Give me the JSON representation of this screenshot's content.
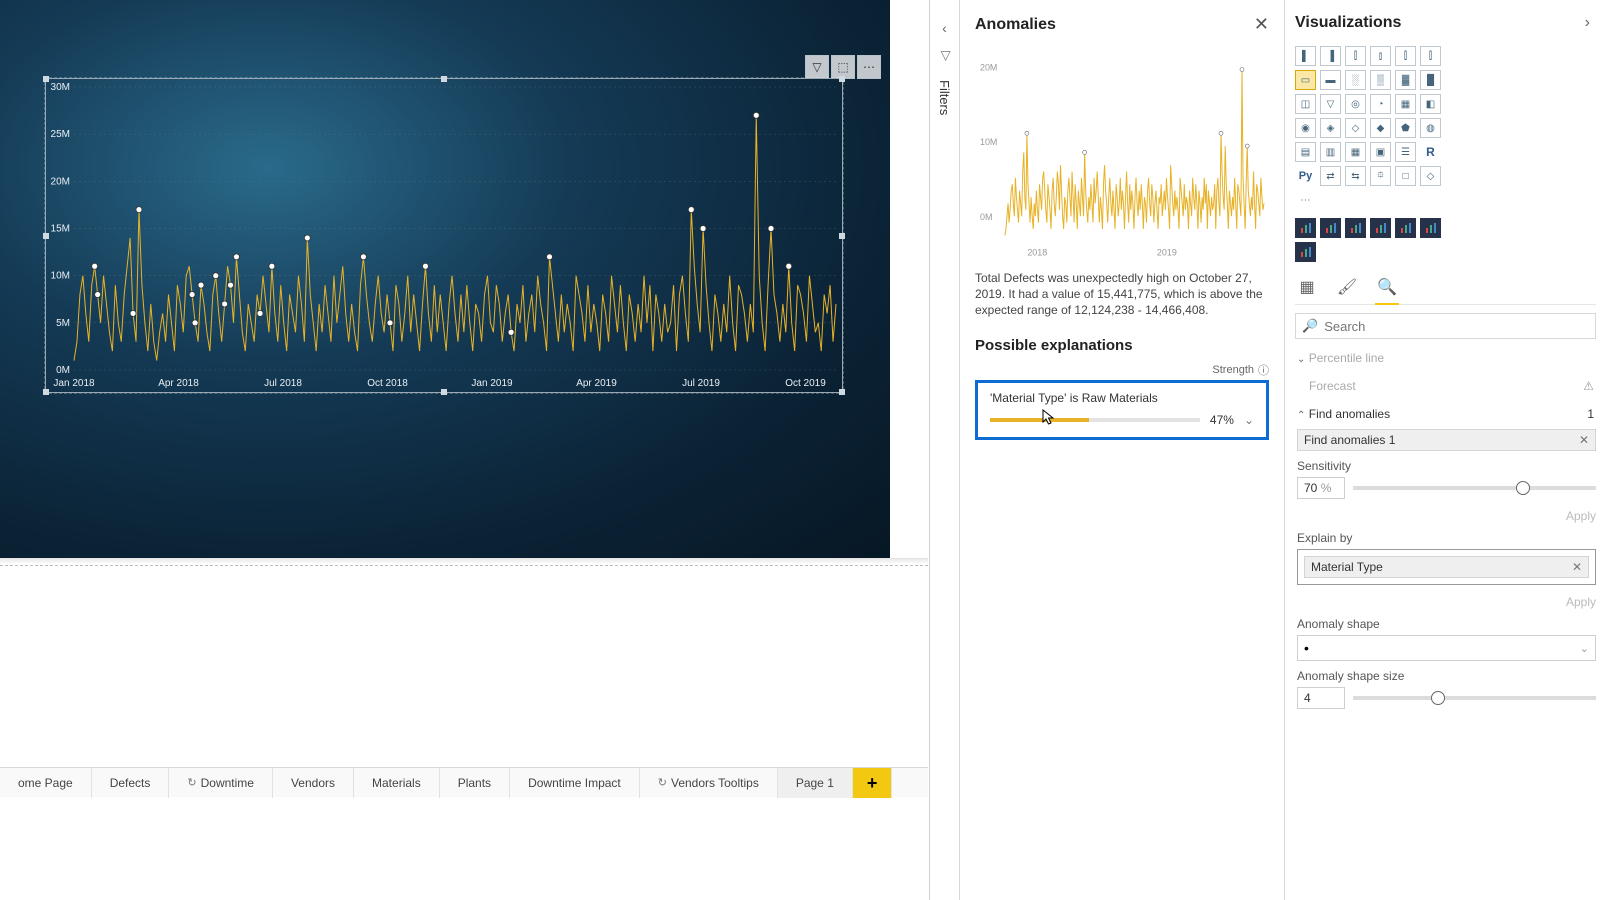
{
  "colors": {
    "chart_bar": "#e8b227",
    "chart_bg_top": "#2a6a8a",
    "chart_bg_bottom": "#071724",
    "selection_border": "#0b6dd4",
    "add_tab": "#f2c811",
    "grid": "#6c7f8c",
    "axis_text": "#e8eff4"
  },
  "main_chart": {
    "type": "line",
    "ylim": [
      0,
      30
    ],
    "yticks": [
      "0M",
      "5M",
      "10M",
      "15M",
      "20M",
      "25M",
      "30M"
    ],
    "xticks": [
      "Jan 2018",
      "Apr 2018",
      "Jul 2018",
      "Oct 2018",
      "Jan 2019",
      "Apr 2019",
      "Jul 2019",
      "Oct 2019"
    ],
    "values": [
      1,
      3,
      8,
      10,
      6,
      3,
      9,
      11,
      8,
      5,
      10,
      7,
      4,
      2,
      9,
      5,
      3,
      8,
      11,
      14,
      6,
      3,
      17,
      9,
      5,
      2,
      7,
      3,
      1,
      4,
      6,
      3,
      8,
      5,
      2,
      9,
      7,
      4,
      10,
      11,
      8,
      5,
      3,
      9,
      7,
      4,
      2,
      8,
      10,
      6,
      3,
      7,
      11,
      9,
      5,
      12,
      8,
      4,
      2,
      7,
      5,
      3,
      8,
      6,
      10,
      7,
      4,
      11,
      6,
      3,
      9,
      5,
      2,
      8,
      6,
      4,
      10,
      7,
      3,
      14,
      8,
      5,
      2,
      7,
      4,
      9,
      6,
      3,
      10,
      5,
      8,
      11,
      6,
      3,
      7,
      4,
      2,
      9,
      12,
      8,
      5,
      3,
      7,
      10,
      6,
      4,
      8,
      5,
      2,
      9,
      7,
      3,
      6,
      10,
      4,
      8,
      5,
      2,
      7,
      11,
      6,
      3,
      9,
      4,
      8,
      5,
      2,
      7,
      10,
      6,
      3,
      8,
      4,
      9,
      5,
      2,
      7,
      6,
      3,
      8,
      10,
      5,
      4,
      9,
      7,
      3,
      6,
      8,
      4,
      2,
      7,
      5,
      9,
      3,
      6,
      8,
      4,
      10,
      7,
      5,
      2,
      12,
      9,
      6,
      3,
      8,
      4,
      7,
      5,
      2,
      10,
      8,
      6,
      3,
      9,
      4,
      7,
      5,
      2,
      8,
      6,
      3,
      10,
      7,
      4,
      9,
      5,
      2,
      8,
      6,
      3,
      7,
      4,
      10,
      5,
      9,
      2,
      8,
      6,
      3,
      7,
      4,
      5,
      9,
      2,
      8,
      10,
      6,
      3,
      17,
      11,
      7,
      4,
      15,
      9,
      5,
      2,
      8,
      6,
      3,
      7,
      4,
      10,
      5,
      2,
      9,
      8,
      6,
      3,
      7,
      4,
      27,
      10,
      5,
      2,
      9,
      15,
      8,
      6,
      3,
      7,
      4,
      11,
      5,
      2,
      9,
      8,
      6,
      3,
      10,
      7,
      4,
      5,
      2,
      8,
      6,
      9,
      3,
      7
    ],
    "anomalies_idx": [
      7,
      8,
      20,
      22,
      40,
      41,
      43,
      48,
      51,
      53,
      55,
      63,
      67,
      79,
      98,
      107,
      119,
      148,
      161,
      209,
      213,
      231,
      236,
      242
    ]
  },
  "toolbar": {
    "filter": "▽",
    "focus": "⬚",
    "more": "⋯"
  },
  "filters_label": "Filters",
  "tabs": [
    {
      "label": "ome Page",
      "icon": ""
    },
    {
      "label": "Defects",
      "icon": ""
    },
    {
      "label": "Downtime",
      "icon": "↻"
    },
    {
      "label": "Vendors",
      "icon": ""
    },
    {
      "label": "Materials",
      "icon": ""
    },
    {
      "label": "Plants",
      "icon": ""
    },
    {
      "label": "Downtime Impact",
      "icon": ""
    },
    {
      "label": "Vendors Tooltips",
      "icon": "↻"
    },
    {
      "label": "Page 1",
      "icon": "",
      "active": true
    }
  ],
  "anomalies": {
    "title": "Anomalies",
    "mini_values": [
      1,
      2,
      4,
      6,
      3,
      5,
      8,
      9,
      6,
      4,
      10,
      7,
      5,
      3,
      8,
      6,
      4,
      11,
      14,
      7,
      5,
      17,
      9,
      6,
      3,
      7,
      4,
      2,
      6,
      4,
      8,
      5,
      3,
      9,
      7,
      5,
      10,
      11,
      8,
      5,
      3,
      9,
      7,
      5,
      2,
      8,
      10,
      6,
      4,
      7,
      11,
      9,
      5,
      12,
      8,
      4,
      2,
      7,
      6,
      3,
      8,
      10,
      7,
      4,
      11,
      7,
      3,
      9,
      6,
      2,
      8,
      6,
      4,
      10,
      7,
      4,
      14,
      8,
      5,
      3,
      7,
      5,
      9,
      6,
      3,
      10,
      6,
      8,
      11,
      7,
      3,
      7,
      5,
      2,
      9,
      12,
      8,
      6,
      3,
      7,
      10,
      6,
      4,
      8,
      5,
      2,
      9,
      7,
      4,
      6,
      10,
      5,
      8,
      6,
      2,
      7,
      11,
      6,
      3,
      9,
      5,
      8,
      6,
      2,
      7,
      10,
      6,
      4,
      8,
      5,
      9,
      6,
      2,
      7,
      6,
      3,
      8,
      10,
      6,
      4,
      9,
      7,
      3,
      6,
      8,
      5,
      2,
      7,
      6,
      9,
      4,
      6,
      8,
      5,
      10,
      7,
      5,
      2,
      12,
      9,
      6,
      4,
      8,
      5,
      7,
      5,
      2,
      10,
      8,
      6,
      4,
      9,
      5,
      7,
      6,
      2,
      8,
      6,
      4,
      10,
      7,
      5,
      9,
      6,
      2,
      8,
      6,
      3,
      7,
      5,
      10,
      6,
      9,
      2,
      8,
      6,
      4,
      7,
      5,
      6,
      9,
      2,
      8,
      10,
      6,
      4,
      17,
      11,
      7,
      5,
      15,
      9,
      6,
      2,
      8,
      6,
      4,
      7,
      5,
      10,
      6,
      2,
      9,
      8,
      6,
      4,
      27,
      10,
      6,
      2,
      9,
      15,
      8,
      6,
      4,
      7,
      5,
      11,
      6,
      2,
      9,
      8,
      6,
      4,
      10,
      7,
      5,
      6
    ],
    "mini_xticks": [
      "2018",
      "2019"
    ],
    "description": "Total Defects was unexpectedly high on October 27, 2019. It had a value of 15,441,775, which is above the expected range of 12,124,238 - 14,466,408.",
    "explanations_title": "Possible explanations",
    "strength_label": "Strength",
    "explanation": {
      "label": "'Material Type' is Raw Materials",
      "pct": 47,
      "pct_label": "47%"
    }
  },
  "viz": {
    "title": "Visualizations",
    "search_placeholder": "Search",
    "percentile_label": "Percentile line",
    "forecast_label": "Forecast",
    "find_anomalies_label": "Find anomalies",
    "find_anomalies_count": "1",
    "find_anomalies_pill": "Find anomalies 1",
    "sensitivity_label": "Sensitivity",
    "sensitivity_value": "70",
    "sensitivity_pct": "%",
    "sensitivity_pos": 70,
    "apply_label": "Apply",
    "explain_by_label": "Explain by",
    "explain_field": "Material Type",
    "anomaly_shape_label": "Anomaly shape",
    "anomaly_shape_value": "•",
    "anomaly_size_label": "Anomaly shape size",
    "anomaly_size_value": "4",
    "anomaly_size_pos": 35
  }
}
